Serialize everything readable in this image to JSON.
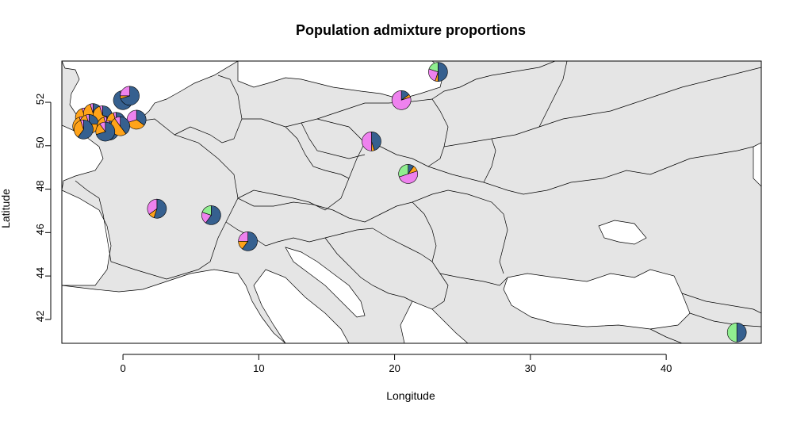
{
  "title": "Population admixture proportions",
  "x_axis_label": "Longitude",
  "y_axis_label": "Latitude",
  "colors": {
    "land": "#e5e5e5",
    "sea": "#ffffff",
    "border": "#000000",
    "cluster_1": "#36608f",
    "cluster_2": "#ffa31a",
    "cluster_3": "#ee82ee",
    "cluster_4": "#90ee90"
  },
  "chart_data": {
    "type": "map-pie",
    "xlim": [
      -4.5,
      47
    ],
    "ylim": [
      40.9,
      53.9
    ],
    "x_ticks": [
      0,
      10,
      20,
      30,
      40
    ],
    "y_ticks": [
      42,
      44,
      46,
      48,
      50,
      52
    ],
    "pies": [
      {
        "lon": 2.5,
        "lat": 47.1,
        "values": [
          0.55,
          0.1,
          0.35,
          0.0
        ]
      },
      {
        "lon": 6.5,
        "lat": 46.8,
        "values": [
          0.6,
          0.0,
          0.2,
          0.2
        ]
      },
      {
        "lon": 9.2,
        "lat": 45.6,
        "values": [
          0.6,
          0.15,
          0.25,
          0.0
        ]
      },
      {
        "lon": 18.3,
        "lat": 50.2,
        "values": [
          0.45,
          0.05,
          0.5,
          0.0
        ]
      },
      {
        "lon": 20.5,
        "lat": 52.1,
        "values": [
          0.15,
          0.05,
          0.8,
          0.0
        ]
      },
      {
        "lon": 23.2,
        "lat": 53.4,
        "values": [
          0.5,
          0.05,
          0.25,
          0.2
        ]
      },
      {
        "lon": 21.0,
        "lat": 48.7,
        "values": [
          0.1,
          0.1,
          0.5,
          0.3
        ]
      },
      {
        "lon": 45.2,
        "lat": 41.4,
        "values": [
          0.5,
          0.0,
          0.0,
          0.5
        ]
      },
      {
        "lon": 0.0,
        "lat": 52.1,
        "values": [
          0.95,
          0.0,
          0.05,
          0.0
        ]
      },
      {
        "lon": 0.5,
        "lat": 52.3,
        "values": [
          0.7,
          0.05,
          0.25,
          0.0
        ]
      },
      {
        "lon": 1.0,
        "lat": 51.2,
        "values": [
          0.35,
          0.35,
          0.3,
          0.0
        ]
      },
      {
        "lon": -2.8,
        "lat": 51.3,
        "values": [
          0.5,
          0.45,
          0.05,
          0.0
        ]
      },
      {
        "lon": -2.2,
        "lat": 51.5,
        "values": [
          0.2,
          0.75,
          0.05,
          0.0
        ]
      },
      {
        "lon": -1.5,
        "lat": 51.4,
        "values": [
          0.3,
          0.65,
          0.05,
          0.0
        ]
      },
      {
        "lon": -3.0,
        "lat": 50.9,
        "values": [
          0.4,
          0.55,
          0.05,
          0.0
        ]
      },
      {
        "lon": -2.5,
        "lat": 51.0,
        "values": [
          0.25,
          0.7,
          0.05,
          0.0
        ]
      },
      {
        "lon": -1.2,
        "lat": 50.9,
        "values": [
          0.35,
          0.6,
          0.05,
          0.0
        ]
      },
      {
        "lon": -0.5,
        "lat": 51.1,
        "values": [
          0.3,
          0.65,
          0.05,
          0.0
        ]
      },
      {
        "lon": -1.0,
        "lat": 50.7,
        "values": [
          0.55,
          0.35,
          0.1,
          0.0
        ]
      },
      {
        "lon": -0.2,
        "lat": 50.9,
        "values": [
          0.4,
          0.5,
          0.1,
          0.0
        ]
      },
      {
        "lon": -1.3,
        "lat": 50.65,
        "values": [
          0.7,
          0.2,
          0.1,
          0.0
        ]
      },
      {
        "lon": -2.9,
        "lat": 50.75,
        "values": [
          0.6,
          0.35,
          0.05,
          0.0
        ]
      }
    ]
  }
}
